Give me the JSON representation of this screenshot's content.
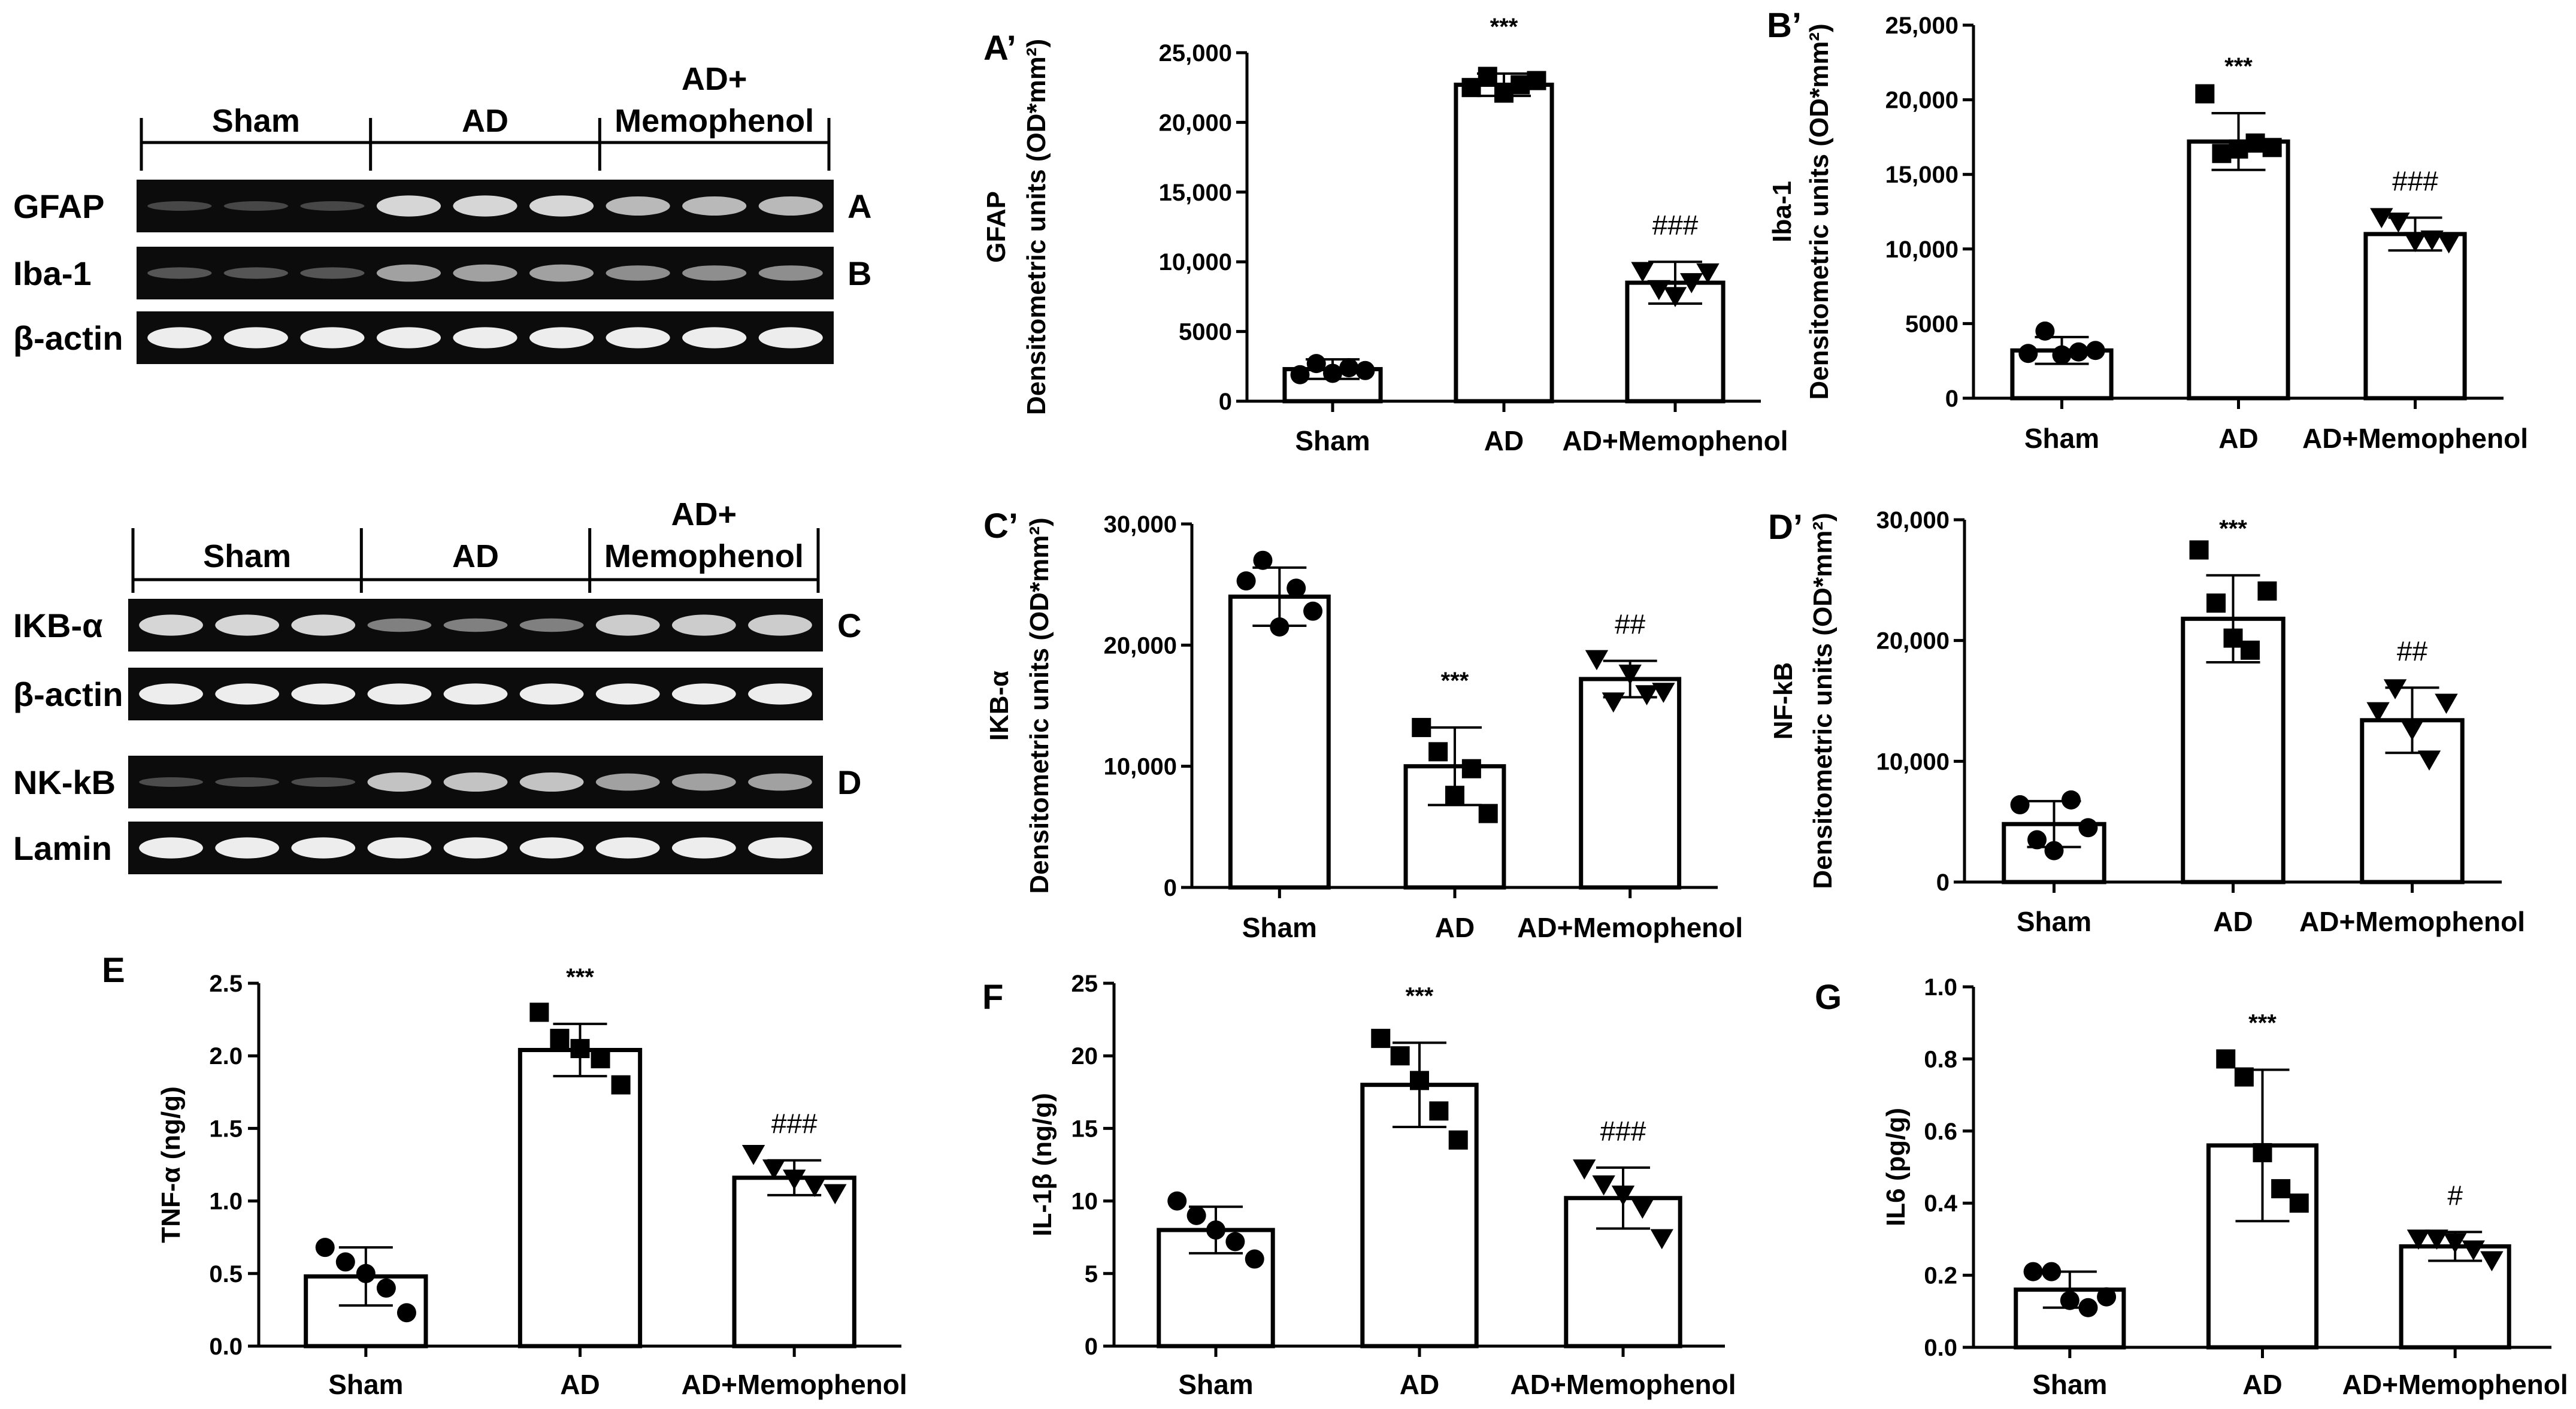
{
  "blots": [
    {
      "id": "blot1",
      "groups": [
        "Sham",
        "AD",
        "AD+\nMemophenol"
      ],
      "rows": [
        {
          "label": "GFAP",
          "panel": "A",
          "pattern": "gfap"
        },
        {
          "label": "Iba-1",
          "panel": "B",
          "pattern": "iba"
        },
        {
          "label": "β-actin",
          "panel": "",
          "pattern": "actin"
        }
      ]
    },
    {
      "id": "blot2",
      "groups": [
        "Sham",
        "AD",
        "AD+\nMemophenol"
      ],
      "rows": [
        {
          "label": "IKB-α",
          "panel": "C",
          "pattern": "ikb"
        },
        {
          "label": "β-actin",
          "panel": "",
          "pattern": "actin"
        },
        {
          "label": "NK-kB",
          "panel": "D",
          "pattern": "nfkb"
        },
        {
          "label": "Lamin",
          "panel": "",
          "pattern": "actin"
        }
      ]
    }
  ],
  "chart_data": [
    {
      "id": "A'",
      "panel_label": "A’",
      "type": "bar",
      "categories": [
        "Sham",
        "AD",
        "AD+Memophenol"
      ],
      "values": [
        2300,
        22700,
        8500
      ],
      "errors": [
        700,
        800,
        1500
      ],
      "points": [
        [
          1900,
          2700,
          2000,
          2400,
          2200
        ],
        [
          22500,
          23300,
          22100,
          22700,
          23000
        ],
        [
          9300,
          8000,
          7500,
          8500,
          9200
        ]
      ],
      "markers": [
        "circle",
        "square",
        "triangle"
      ],
      "ylabel": "GFAP\nDensitometric units (OD*mm²)",
      "ylim": [
        0,
        25000
      ],
      "yticks": [
        "0",
        "5000",
        "10,000",
        "15,000",
        "20,000",
        "25,000"
      ],
      "annotations": [
        "",
        "***",
        "###"
      ]
    },
    {
      "id": "B'",
      "panel_label": "B’",
      "type": "bar",
      "categories": [
        "Sham",
        "AD",
        "AD+Memophenol"
      ],
      "values": [
        3200,
        17200,
        11000
      ],
      "errors": [
        900,
        1900,
        1100
      ],
      "points": [
        [
          3000,
          4500,
          2900,
          3100,
          3200
        ],
        [
          20400,
          16400,
          16700,
          17100,
          16800
        ],
        [
          12100,
          11800,
          10500,
          10600,
          10400
        ]
      ],
      "markers": [
        "circle",
        "square",
        "triangle"
      ],
      "ylabel": "Iba-1\nDensitometric units (OD*mm²)",
      "ylim": [
        0,
        25000
      ],
      "yticks": [
        "0",
        "5000",
        "10,000",
        "15,000",
        "20,000",
        "25,000"
      ],
      "annotations": [
        "",
        "***",
        "###"
      ]
    },
    {
      "id": "C'",
      "panel_label": "C’",
      "type": "bar",
      "categories": [
        "Sham",
        "AD",
        "AD+Memophenol"
      ],
      "values": [
        24000,
        10000,
        17200
      ],
      "errors": [
        2400,
        3200,
        1500
      ],
      "points": [
        [
          25300,
          27000,
          21500,
          24700,
          22800
        ],
        [
          13200,
          11200,
          7600,
          9800,
          6100
        ],
        [
          18800,
          15300,
          17600,
          15900,
          16100
        ]
      ],
      "markers": [
        "circle",
        "square",
        "triangle"
      ],
      "ylabel": "IKB-α\nDensitometric units (OD*mm²)",
      "ylim": [
        0,
        30000
      ],
      "yticks": [
        "0",
        "10,000",
        "20,000",
        "30,000"
      ],
      "annotations": [
        "",
        "***",
        "##"
      ]
    },
    {
      "id": "D'",
      "panel_label": "D’",
      "type": "bar",
      "categories": [
        "Sham",
        "AD",
        "AD+Memophenol"
      ],
      "values": [
        4800,
        21800,
        13400
      ],
      "errors": [
        1900,
        3600,
        2700
      ],
      "points": [
        [
          6400,
          3500,
          2600,
          6800,
          4500
        ],
        [
          27500,
          23100,
          20200,
          19200,
          24100
        ],
        [
          14100,
          16000,
          12600,
          10100,
          14800
        ]
      ],
      "markers": [
        "circle",
        "square",
        "triangle"
      ],
      "ylabel": "NF-kB\nDensitometric units (OD*mm²)",
      "ylim": [
        0,
        30000
      ],
      "yticks": [
        "0",
        "10,000",
        "20,000",
        "30,000"
      ],
      "annotations": [
        "",
        "***",
        "##"
      ]
    },
    {
      "id": "E",
      "panel_label": "E",
      "type": "bar",
      "categories": [
        "Sham",
        "AD",
        "AD+Memophenol"
      ],
      "values": [
        0.48,
        2.04,
        1.16
      ],
      "errors": [
        0.2,
        0.18,
        0.12
      ],
      "points": [
        [
          0.68,
          0.58,
          0.5,
          0.4,
          0.23
        ],
        [
          2.3,
          2.12,
          2.05,
          1.98,
          1.8
        ],
        [
          1.32,
          1.22,
          1.15,
          1.1,
          1.05
        ]
      ],
      "markers": [
        "circle",
        "square",
        "triangle"
      ],
      "ylabel": "TNF-α (ng/g)",
      "ylim": [
        0,
        2.5
      ],
      "yticks": [
        "0.0",
        "0.5",
        "1.0",
        "1.5",
        "2.0",
        "2.5"
      ],
      "annotations": [
        "",
        "***",
        "###"
      ]
    },
    {
      "id": "F",
      "panel_label": "F",
      "type": "bar",
      "categories": [
        "Sham",
        "AD",
        "AD+Memophenol"
      ],
      "values": [
        8,
        18,
        10.2
      ],
      "errors": [
        1.6,
        2.9,
        2.1
      ],
      "points": [
        [
          10,
          9,
          8,
          7.2,
          6
        ],
        [
          21.2,
          20,
          18.3,
          16.2,
          14.2
        ],
        [
          12.2,
          11.1,
          10.4,
          9.5,
          7.4
        ]
      ],
      "markers": [
        "circle",
        "square",
        "triangle"
      ],
      "ylabel": "IL-1β (ng/g)",
      "ylim": [
        0,
        25
      ],
      "yticks": [
        "0",
        "5",
        "10",
        "15",
        "20",
        "25"
      ],
      "annotations": [
        "",
        "***",
        "###"
      ]
    },
    {
      "id": "G",
      "panel_label": "G",
      "type": "bar",
      "categories": [
        "Sham",
        "AD",
        "AD+Memophenol"
      ],
      "values": [
        0.16,
        0.56,
        0.28
      ],
      "errors": [
        0.05,
        0.21,
        0.04
      ],
      "points": [
        [
          0.21,
          0.21,
          0.13,
          0.11,
          0.14
        ],
        [
          0.8,
          0.75,
          0.54,
          0.44,
          0.4
        ],
        [
          0.3,
          0.3,
          0.29,
          0.27,
          0.24
        ]
      ],
      "markers": [
        "circle",
        "square",
        "triangle"
      ],
      "ylabel": "IL6 (pg/g)",
      "ylim": [
        0,
        1.0
      ],
      "yticks": [
        "0.0",
        "0.2",
        "0.4",
        "0.6",
        "0.8",
        "1.0"
      ],
      "annotations": [
        "",
        "***",
        "#"
      ]
    }
  ]
}
